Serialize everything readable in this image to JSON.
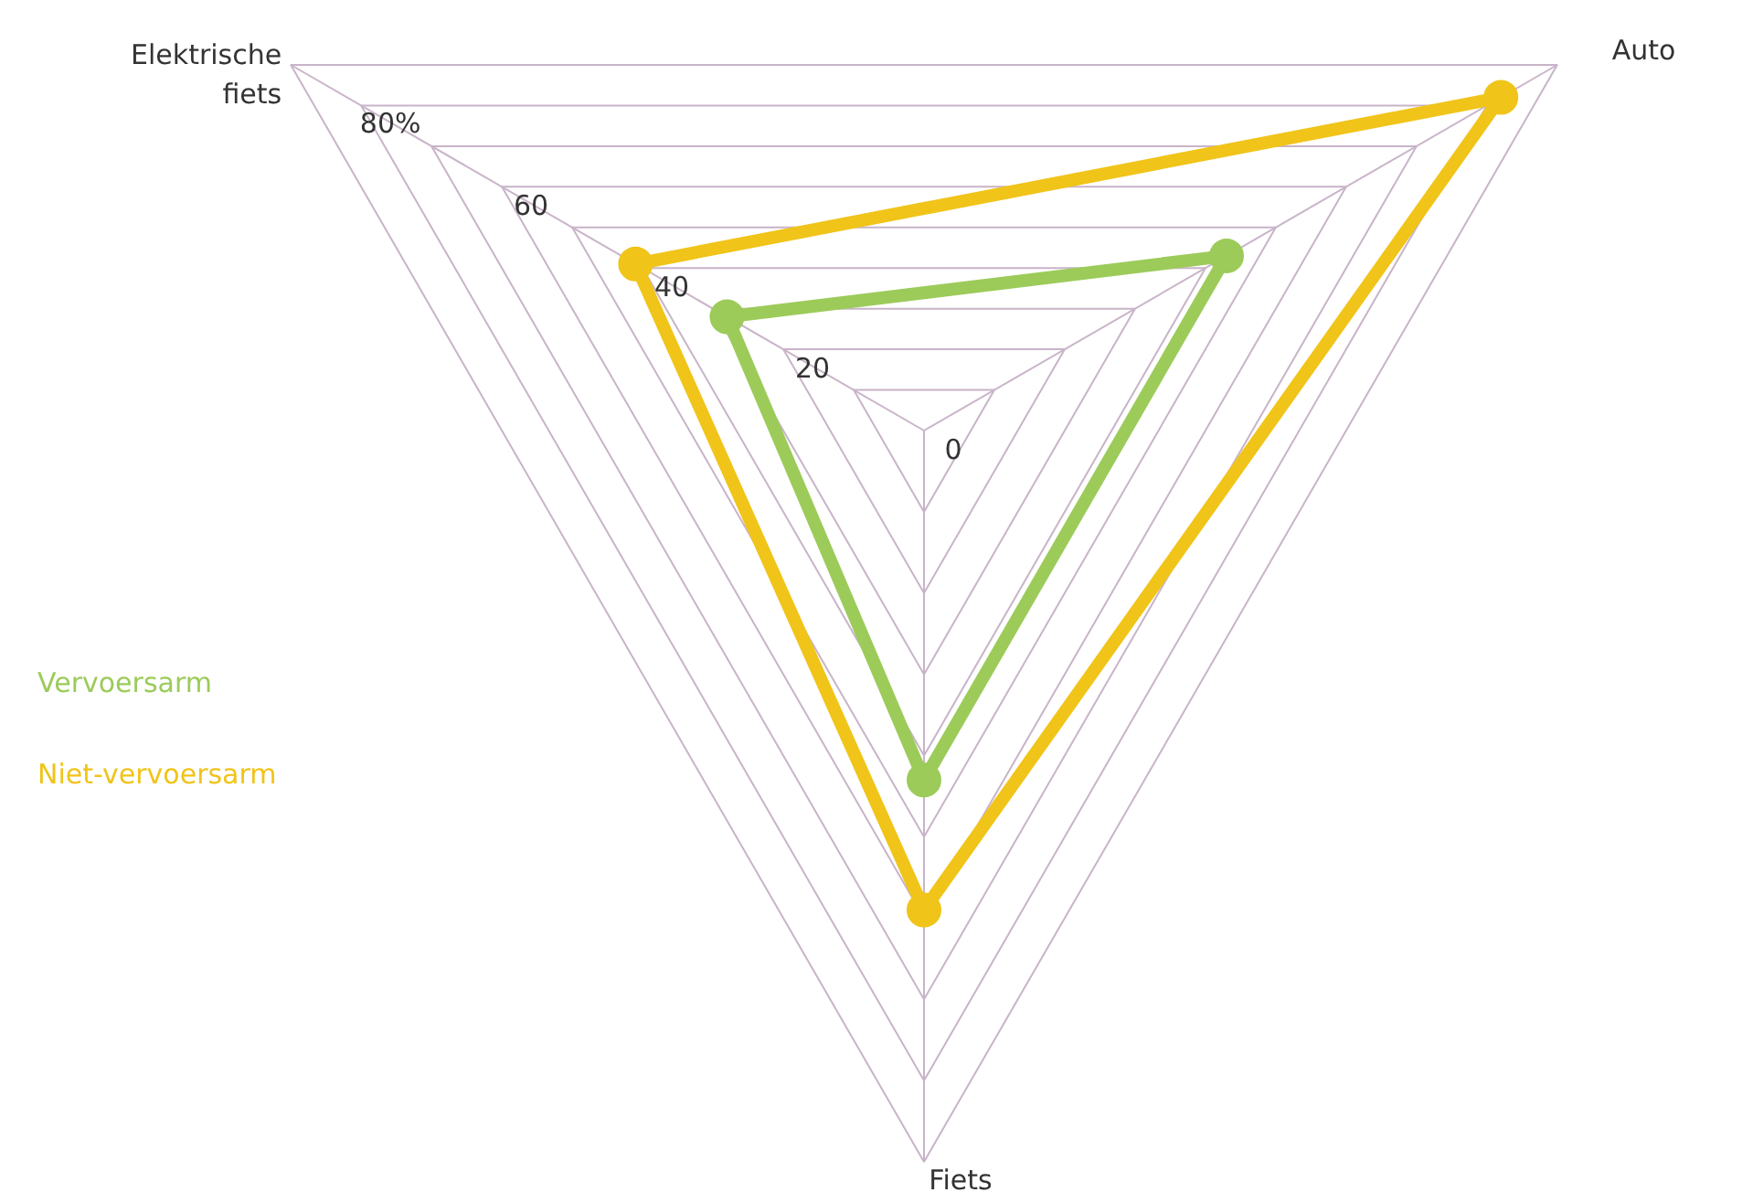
{
  "chart_data": {
    "type": "radar",
    "categories": [
      "Auto",
      "Fiets",
      "Elektrische fiets"
    ],
    "series": [
      {
        "name": "Vervoersarm",
        "color": "#9ccb5a",
        "values": [
          43,
          43,
          28
        ]
      },
      {
        "name": "Niet-vervoersarm",
        "color": "#f0c419",
        "values": [
          82,
          59,
          41
        ]
      }
    ],
    "ylim": [
      0,
      90
    ],
    "yticks": [
      0,
      20,
      40,
      60,
      {
        "value": 80,
        "label": "80%"
      }
    ],
    "grid": true,
    "legend": "left",
    "marker": "circle",
    "line_style": "solid"
  }
}
